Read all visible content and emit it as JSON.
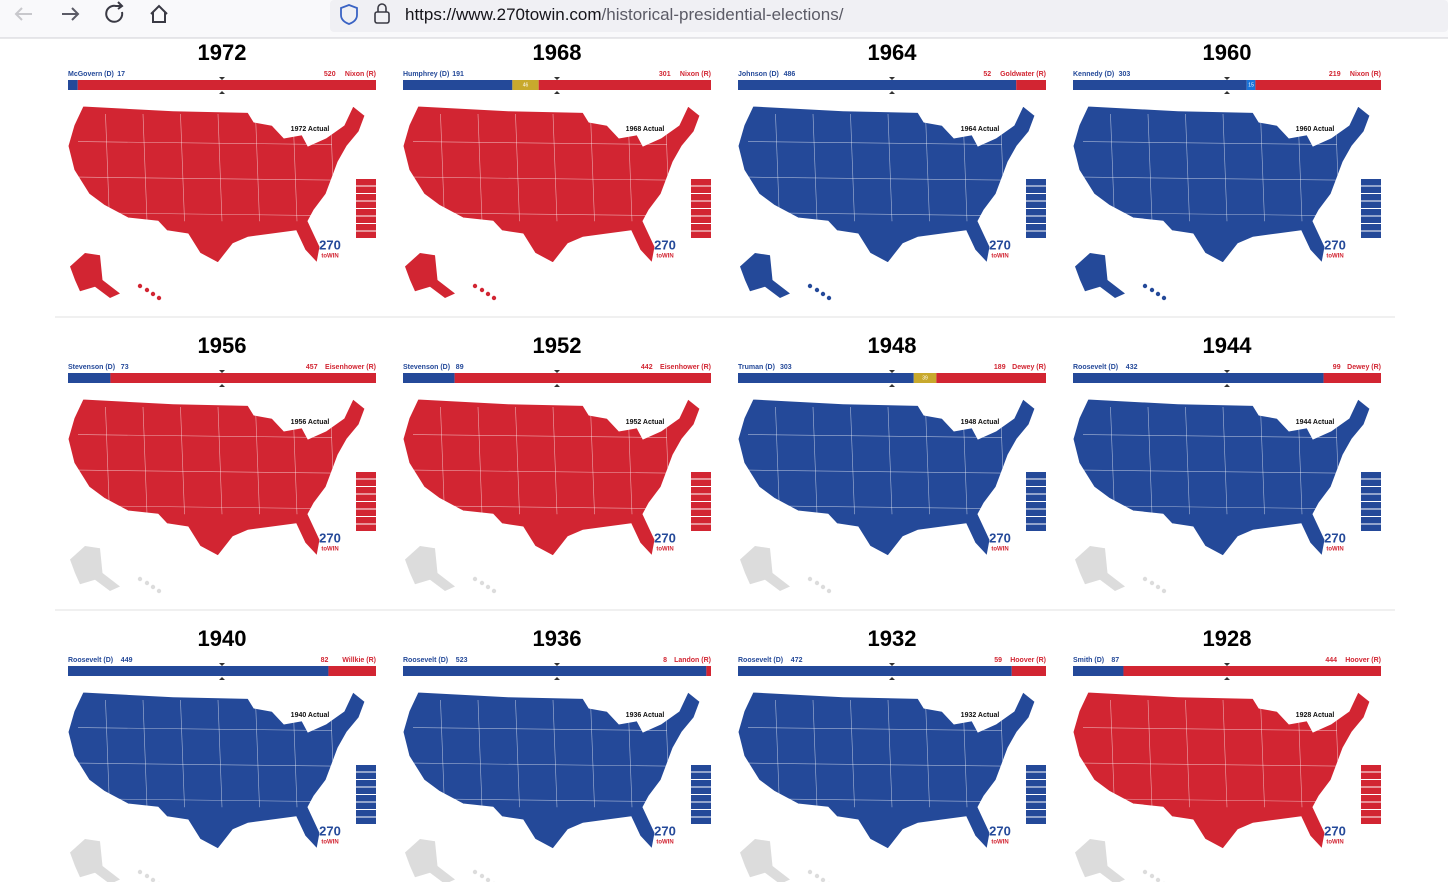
{
  "browser": {
    "url_host": "https://www.270towin.com",
    "url_path": "/historical-presidential-elections/"
  },
  "colors": {
    "dem": "#244999",
    "rep": "#d22532"
  },
  "logo": {
    "top": "270",
    "bottom": "toWIN"
  },
  "elections": [
    {
      "year": "1972",
      "dem": {
        "name": "McGovern (D)",
        "ev": 17
      },
      "rep": {
        "name": "Nixon (R)",
        "ev": 520
      },
      "actual": "1972 Actual",
      "ak_hi": true
    },
    {
      "year": "1968",
      "dem": {
        "name": "Humphrey (D)",
        "ev": 191
      },
      "rep": {
        "name": "Nixon (R)",
        "ev": 301
      },
      "third": {
        "ev": 46,
        "color": "#c8a92d"
      },
      "actual": "1968 Actual",
      "ak_hi": true
    },
    {
      "year": "1964",
      "dem": {
        "name": "Johnson (D)",
        "ev": 486
      },
      "rep": {
        "name": "Goldwater (R)",
        "ev": 52
      },
      "actual": "1964 Actual",
      "ak_hi": true
    },
    {
      "year": "1960",
      "dem": {
        "name": "Kennedy (D)",
        "ev": 303
      },
      "rep": {
        "name": "Nixon (R)",
        "ev": 219
      },
      "third": {
        "ev": 15,
        "color": "#1a73d9"
      },
      "actual": "1960 Actual",
      "ak_hi": true
    },
    {
      "year": "1956",
      "dem": {
        "name": "Stevenson (D)",
        "ev": 73
      },
      "rep": {
        "name": "Eisenhower (R)",
        "ev": 457
      },
      "actual": "1956 Actual",
      "ak_hi": false
    },
    {
      "year": "1952",
      "dem": {
        "name": "Stevenson (D)",
        "ev": 89
      },
      "rep": {
        "name": "Eisenhower (R)",
        "ev": 442
      },
      "actual": "1952 Actual",
      "ak_hi": false
    },
    {
      "year": "1948",
      "dem": {
        "name": "Truman (D)",
        "ev": 303
      },
      "rep": {
        "name": "Dewey (R)",
        "ev": 189
      },
      "third": {
        "ev": 39,
        "color": "#c8a92d"
      },
      "actual": "1948 Actual",
      "ak_hi": false
    },
    {
      "year": "1944",
      "dem": {
        "name": "Roosevelt (D)",
        "ev": 432
      },
      "rep": {
        "name": "Dewey (R)",
        "ev": 99
      },
      "actual": "1944 Actual",
      "ak_hi": false
    },
    {
      "year": "1940",
      "dem": {
        "name": "Roosevelt (D)",
        "ev": 449
      },
      "rep": {
        "name": "Willkie (R)",
        "ev": 82
      },
      "actual": "1940 Actual",
      "ak_hi": false
    },
    {
      "year": "1936",
      "dem": {
        "name": "Roosevelt (D)",
        "ev": 523
      },
      "rep": {
        "name": "Landon (R)",
        "ev": 8
      },
      "actual": "1936 Actual",
      "ak_hi": false
    },
    {
      "year": "1932",
      "dem": {
        "name": "Roosevelt (D)",
        "ev": 472
      },
      "rep": {
        "name": "Hoover (R)",
        "ev": 59
      },
      "actual": "1932 Actual",
      "ak_hi": false
    },
    {
      "year": "1928",
      "dem": {
        "name": "Smith (D)",
        "ev": 87
      },
      "rep": {
        "name": "Hoover (R)",
        "ev": 444
      },
      "actual": "1928 Actual",
      "ak_hi": false
    }
  ]
}
